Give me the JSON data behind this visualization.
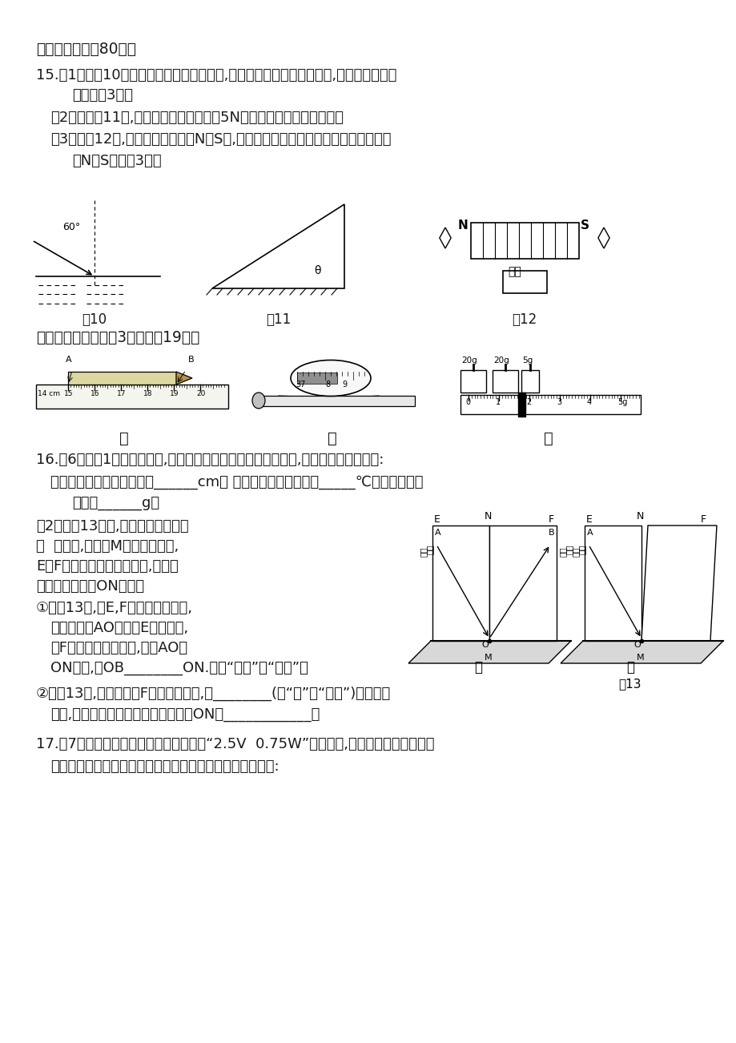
{
  "bg_color": "#ffffff",
  "section3_title": "三、作图题（全80分）",
  "section4_title": "四、实验题（本大题3小题，全19分）",
  "q15_text1": "15.（1）如图10是一束射向水面的入射光线,请画出反射光线和折射光线,并标出反射角的",
  "q15_text1b": "大小。（3分）",
  "q15_text2": "（2）请在图11中,作出静止在斜面上重为5N的物体所受重力的示意图。",
  "q15_text3": "（3）在图12中,根据通电螺线管的N、S极,分别标出电源的正负极和两小磁针静止时",
  "q15_text3b": "的N、S极。（3分）",
  "fig10_label": "图10",
  "fig11_label": "图11",
  "fig12_label": "图12",
  "fig13_label": "图13",
  "jia_label": "甲",
  "yi_label": "乙",
  "bing_label": "丙",
  "q16_text1": "16.（6分）（1）如下图所示,是小丽同学在实验中所测量的数据,现请你填写测量结果:",
  "q16_text2": "甲图中这段铅笔的长度应是______cm； 乙图中体温计的示数是_____℃；丙图中天平",
  "q16_text3": "读数是______g。",
  "q16_2_text1": "（2）如图13所示,在研究光的反射规",
  "q16_2_text2": "律  实验中,平面镜M平放在平板上,",
  "q16_2_text3": "E、F是两粘接起来的硬纸板,可绕垂",
  "q16_2_text4": "直于镜面的接缝ON转动。",
  "q16_2_1_text1": "①如图13甲,当E,F在同一平面上时,",
  "q16_2_1_text2": "让入射光线AO沿纸板E射向镜面,",
  "q16_2_1_text3": "在F上可看到反射光线,若将AO向",
  "q16_2_1_text4": "ON靠近,则OB________ON.（填“靠近”或“远离”）",
  "q16_2_2_text1": "②如图13乙,把半面纸板F向前或向后折,则________(填“能”或“不能”)看到反射",
  "q16_2_2_text2": "光线,说明反射光线与入射光线及法线ON在____________。",
  "q17_text1": "17.（7分）某校实验室购买了一批铭牌为“2.5V  0.75W”的小灯泡,小军同学利用其中一只",
  "q17_text2": "灯泡做测量小灯泡电功率的实验。现请你帮他完成下面问题:"
}
